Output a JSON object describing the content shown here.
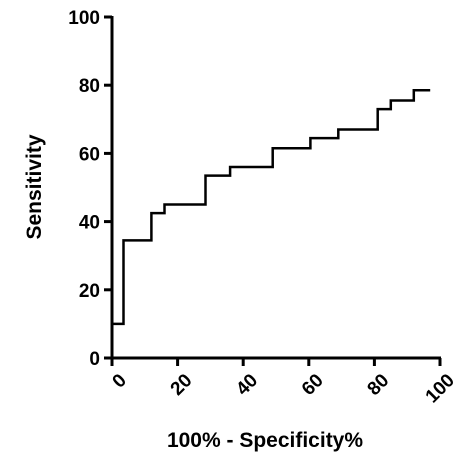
{
  "chart_data": {
    "type": "line",
    "xlabel": "100% - Specificity%",
    "ylabel": "Sensitivity",
    "xlim": [
      0,
      100
    ],
    "ylim": [
      0,
      100
    ],
    "x_ticks": [
      "0",
      "20",
      "40",
      "60",
      "80",
      "100"
    ],
    "y_ticks": [
      "0",
      "20",
      "40",
      "60",
      "80",
      "100"
    ],
    "grid": false,
    "series": [
      {
        "step": true,
        "x": [
          0,
          3.5,
          3.5,
          12,
          12,
          16,
          16,
          28.5,
          28.5,
          36,
          36,
          49,
          49,
          60.5,
          60.5,
          69,
          69,
          81,
          81,
          85,
          85,
          92,
          92,
          97
        ],
        "y": [
          10,
          10,
          34.5,
          34.5,
          42.5,
          42.5,
          45,
          45,
          53.5,
          53.5,
          56,
          56,
          61.5,
          61.5,
          64.5,
          64.5,
          67,
          67,
          73,
          73,
          75.5,
          75.5,
          78.5,
          78.5
        ],
        "color": "#000000"
      }
    ]
  }
}
